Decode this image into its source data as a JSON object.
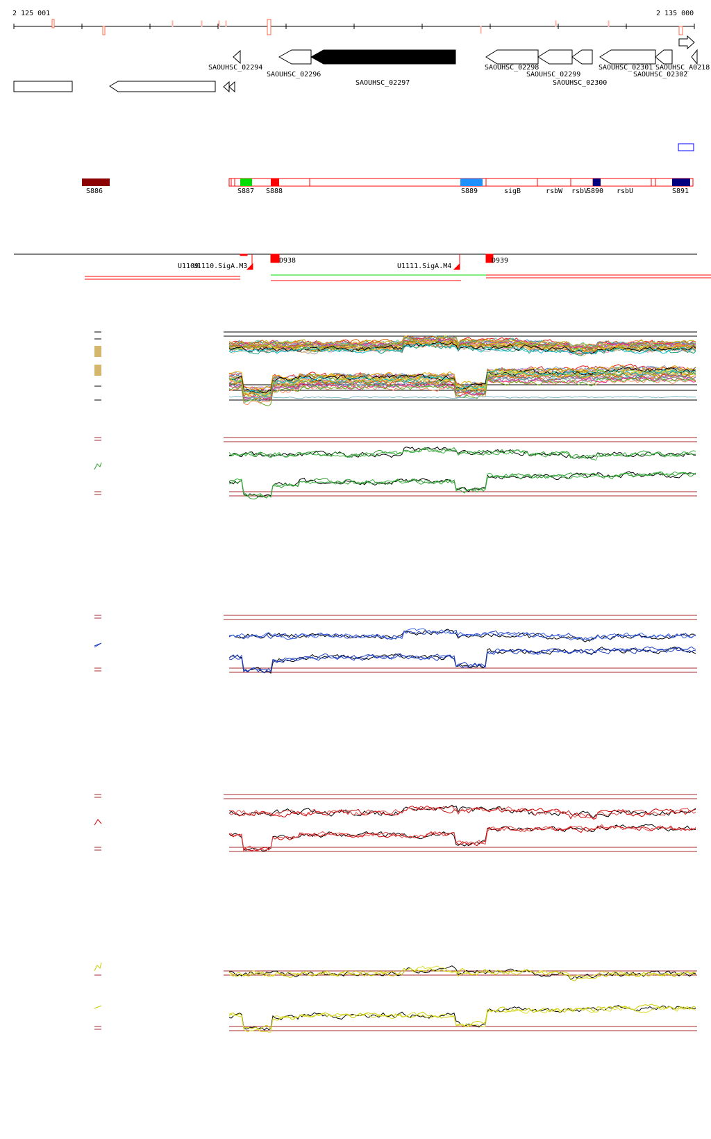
{
  "coordinates": {
    "start_label": "2 125 001",
    "end_label": "2 135 000"
  },
  "genes": {
    "SAOUHSC_02294": "SAOUHSC_02294",
    "SAOUHSC_02296": "SAOUHSC_02296",
    "SAOUHSC_02297": "SAOUHSC_02297",
    "SAOUHSC_02298": "SAOUHSC_02298",
    "SAOUHSC_02299": "SAOUHSC_02299",
    "SAOUHSC_02300": "SAOUHSC_02300",
    "SAOUHSC_02301": "SAOUHSC_02301",
    "SAOUHSC_02302": "SAOUHSC_02302",
    "SAOUHSC_A0218": "SAOUHSC_A0218"
  },
  "segments": {
    "S886": "S886",
    "S887": "S887",
    "S888": "S888",
    "S889": "S889",
    "sigB": "sigB",
    "rsbW": "rsbW",
    "rsbV": "rsbV",
    "S890": "S890",
    "rsbU": "rsbU",
    "S891": "S891"
  },
  "promoters": {
    "left": "U1109",
    "left_overlap": "U1110.SigA.M3",
    "mid_tag": "D938",
    "mid": "U1111.SigA.M4",
    "right": "D939"
  },
  "colors": {
    "feature_outline": "#ff0000",
    "S886": "#8b0000",
    "S887": "#00dd00",
    "S889": "#1e90ff",
    "S890": "#000080",
    "S891": "#000080",
    "panel2_line": "#2e9a2e",
    "panel3_line": "#1f3fbf",
    "panel4_line": "#cc0000",
    "panel5_line": "#cccc00",
    "threshold": "#a52a2a"
  },
  "panels": [
    {
      "id": "multi-condition",
      "series_count": 30
    },
    {
      "id": "green-condition",
      "series_colors": [
        "#2e9a2e",
        "#000000",
        "#3cb043"
      ]
    },
    {
      "id": "blue-condition",
      "series_colors": [
        "#1f3fbf",
        "#000000",
        "#4169e1"
      ]
    },
    {
      "id": "red-condition",
      "series_colors": [
        "#cc0000",
        "#000000",
        "#e05050"
      ]
    },
    {
      "id": "yellow-condition",
      "series_colors": [
        "#cccc00",
        "#000000",
        "#dddd33"
      ]
    }
  ]
}
